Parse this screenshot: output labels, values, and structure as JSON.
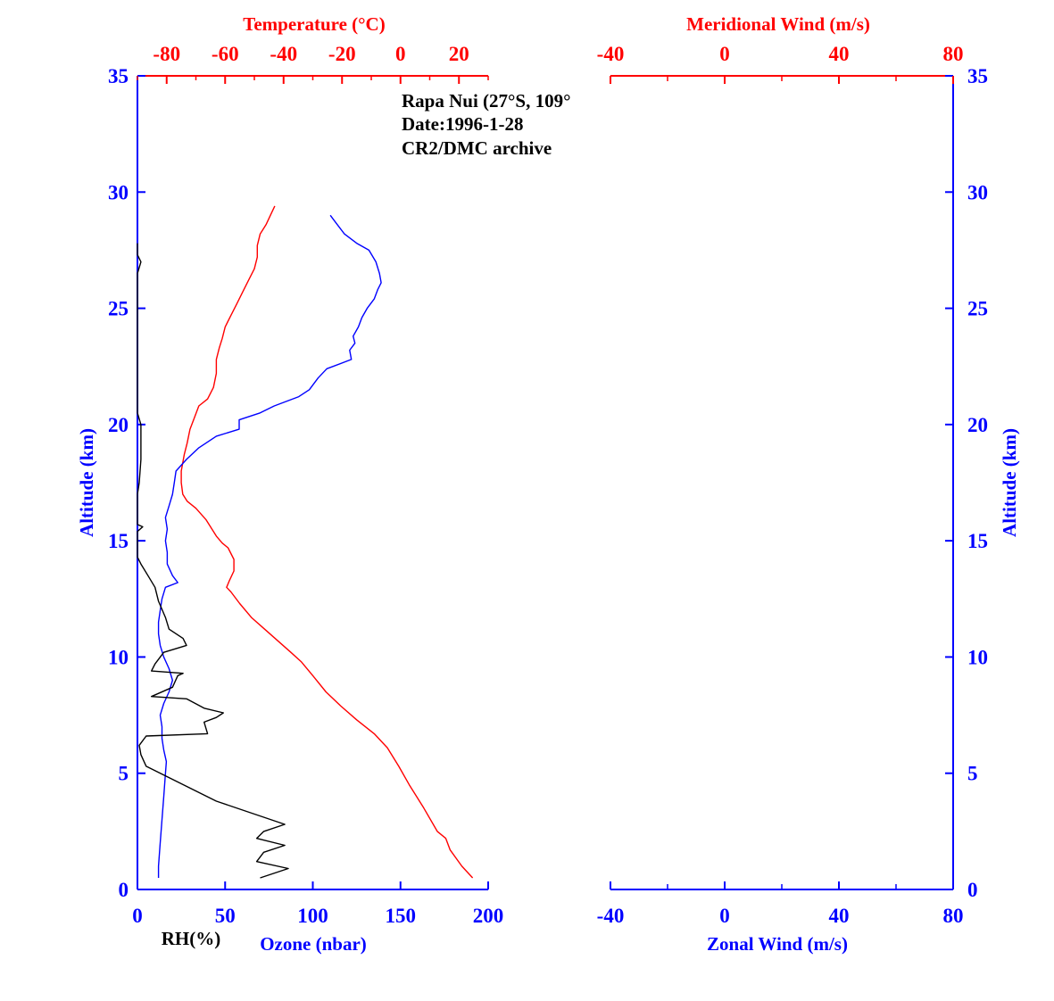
{
  "colors": {
    "blue": "#0000ff",
    "red": "#ff0000",
    "black": "#000000"
  },
  "chart_data": [
    {
      "type": "line",
      "info": {
        "line1": "Rapa Nui (27°S, 109°",
        "line2": "Date:1996-1-28",
        "line3": "CR2/DMC archive"
      },
      "y_axis": {
        "label": "Altitude (km)",
        "ylim": [
          0,
          35
        ],
        "ticks": [
          0,
          5,
          10,
          15,
          20,
          25,
          30,
          35
        ]
      },
      "x_bottom": {
        "label_rh": "RH(%)",
        "label_ozone": "Ozone (nbar)",
        "xlim": [
          0,
          200
        ],
        "ticks": [
          0,
          50,
          100,
          150,
          200
        ]
      },
      "x_top": {
        "label": "Temperature (°C)",
        "xlim": [
          -90,
          30
        ],
        "ticks": [
          -80,
          -60,
          -40,
          -20,
          0,
          20
        ]
      },
      "series": [
        {
          "name": "Temperature",
          "axis": "x_top",
          "color": "#ff0000",
          "points": [
            [
              24.7,
              0.5
            ],
            [
              21,
              1
            ],
            [
              17,
              1.7
            ],
            [
              15.5,
              2.2
            ],
            [
              12.6,
              2.5
            ],
            [
              8,
              3.5
            ],
            [
              3,
              4.5
            ],
            [
              -0.6,
              5.3
            ],
            [
              -4.5,
              6.1
            ],
            [
              -9,
              6.7
            ],
            [
              -15,
              7.3
            ],
            [
              -20.5,
              7.9
            ],
            [
              -25.5,
              8.5
            ],
            [
              -30,
              9.2
            ],
            [
              -34,
              9.8
            ],
            [
              -37.5,
              10.2
            ],
            [
              -42,
              10.7
            ],
            [
              -46.5,
              11.2
            ],
            [
              -51,
              11.7
            ],
            [
              -55,
              12.3
            ],
            [
              -58,
              12.8
            ],
            [
              -59.5,
              13.0
            ],
            [
              -58.5,
              13.3
            ],
            [
              -57,
              13.7
            ],
            [
              -57,
              14.2
            ],
            [
              -59,
              14.7
            ],
            [
              -61,
              14.9
            ],
            [
              -63,
              15.2
            ],
            [
              -66.5,
              15.9
            ],
            [
              -70,
              16.4
            ],
            [
              -73,
              16.7
            ],
            [
              -74.5,
              17.0
            ],
            [
              -75,
              17.5
            ],
            [
              -75,
              18.0
            ],
            [
              -74,
              18.7
            ],
            [
              -73,
              19.2
            ],
            [
              -72,
              19.8
            ],
            [
              -70.5,
              20.3
            ],
            [
              -69,
              20.8
            ],
            [
              -66,
              21.1
            ],
            [
              -64,
              21.6
            ],
            [
              -63,
              22.2
            ],
            [
              -63,
              22.8
            ],
            [
              -62,
              23.3
            ],
            [
              -61,
              23.7
            ],
            [
              -60,
              24.2
            ],
            [
              -58,
              24.7
            ],
            [
              -56,
              25.2
            ],
            [
              -54,
              25.7
            ],
            [
              -52,
              26.2
            ],
            [
              -50,
              26.7
            ],
            [
              -49,
              27.2
            ],
            [
              -49,
              27.7
            ],
            [
              -48,
              28.2
            ],
            [
              -46,
              28.6
            ],
            [
              -44.5,
              29.0
            ],
            [
              -43,
              29.4
            ]
          ]
        },
        {
          "name": "Ozone",
          "axis": "x_bottom",
          "color": "#0000ff",
          "points": [
            [
              12,
              0.5
            ],
            [
              12,
              1
            ],
            [
              13,
              2
            ],
            [
              14,
              3
            ],
            [
              15,
              4
            ],
            [
              16,
              5
            ],
            [
              16.5,
              5.5
            ],
            [
              15,
              6
            ],
            [
              14,
              6.5
            ],
            [
              14,
              7
            ],
            [
              13,
              7.5
            ],
            [
              15,
              8
            ],
            [
              18,
              8.5
            ],
            [
              20,
              9
            ],
            [
              18,
              9.5
            ],
            [
              15,
              10
            ],
            [
              13,
              10.5
            ],
            [
              12,
              11
            ],
            [
              12,
              11.5
            ],
            [
              13,
              12
            ],
            [
              14,
              12.5
            ],
            [
              16,
              13.0
            ],
            [
              23,
              13.2
            ],
            [
              20,
              13.5
            ],
            [
              17,
              14
            ],
            [
              17,
              14.5
            ],
            [
              16,
              15
            ],
            [
              17,
              15.5
            ],
            [
              16,
              16
            ],
            [
              18,
              16.5
            ],
            [
              20,
              17
            ],
            [
              21,
              17.5
            ],
            [
              22,
              18
            ],
            [
              28,
              18.5
            ],
            [
              35,
              19
            ],
            [
              45,
              19.5
            ],
            [
              58,
              19.8
            ],
            [
              58,
              20.2
            ],
            [
              70,
              20.5
            ],
            [
              78,
              20.8
            ],
            [
              92,
              21.2
            ],
            [
              98,
              21.5
            ],
            [
              103,
              22
            ],
            [
              108,
              22.4
            ],
            [
              122,
              22.8
            ],
            [
              121,
              23.2
            ],
            [
              124,
              23.5
            ],
            [
              123,
              23.8
            ],
            [
              126,
              24.2
            ],
            [
              128,
              24.6
            ],
            [
              131,
              25
            ],
            [
              135,
              25.4
            ],
            [
              137,
              25.8
            ],
            [
              139,
              26.1
            ],
            [
              138,
              26.5
            ],
            [
              136,
              27
            ],
            [
              132,
              27.5
            ],
            [
              125,
              27.8
            ],
            [
              118,
              28.2
            ],
            [
              113,
              28.7
            ],
            [
              110,
              29
            ]
          ]
        },
        {
          "name": "RH",
          "axis": "x_bottom",
          "color": "#000000",
          "points": [
            [
              70,
              0.5
            ],
            [
              86,
              0.9
            ],
            [
              68,
              1.2
            ],
            [
              72,
              1.6
            ],
            [
              84,
              1.9
            ],
            [
              68,
              2.2
            ],
            [
              72,
              2.5
            ],
            [
              84,
              2.8
            ],
            [
              45,
              3.8
            ],
            [
              5,
              5.3
            ],
            [
              2,
              5.8
            ],
            [
              1,
              6.2
            ],
            [
              5,
              6.6
            ],
            [
              40,
              6.7
            ],
            [
              38,
              7.2
            ],
            [
              45,
              7.4
            ],
            [
              49,
              7.6
            ],
            [
              38,
              7.8
            ],
            [
              28,
              8.2
            ],
            [
              8,
              8.3
            ],
            [
              20,
              8.7
            ],
            [
              23,
              9.2
            ],
            [
              26,
              9.3
            ],
            [
              8,
              9.4
            ],
            [
              10,
              9.7
            ],
            [
              15,
              10.2
            ],
            [
              28,
              10.5
            ],
            [
              26,
              10.8
            ],
            [
              18,
              11.2
            ],
            [
              16,
              11.7
            ],
            [
              12,
              12.4
            ],
            [
              10,
              13.0
            ],
            [
              6,
              13.5
            ],
            [
              2,
              14.0
            ],
            [
              0,
              14.3
            ],
            [
              0,
              15.4
            ],
            [
              3,
              15.6
            ],
            [
              0,
              15.7
            ],
            [
              0,
              17.0
            ],
            [
              1,
              17.5
            ],
            [
              2,
              18.5
            ],
            [
              2,
              20.0
            ],
            [
              0,
              20.5
            ],
            [
              0,
              26.5
            ],
            [
              2,
              27.0
            ],
            [
              0,
              27.3
            ],
            [
              0,
              27.8
            ]
          ]
        }
      ]
    },
    {
      "type": "line",
      "y_axis": {
        "label": "Altitude (km)",
        "ylim": [
          0,
          35
        ],
        "ticks": [
          0,
          5,
          10,
          15,
          20,
          25,
          30,
          35
        ]
      },
      "x_bottom": {
        "label": "Zonal Wind (m/s)",
        "xlim": [
          -40,
          80
        ],
        "ticks": [
          -40,
          0,
          40,
          80
        ]
      },
      "x_top": {
        "label": "Meridional Wind (m/s)",
        "xlim": [
          -40,
          80
        ],
        "ticks": [
          -40,
          0,
          40,
          80
        ]
      },
      "series": []
    }
  ]
}
